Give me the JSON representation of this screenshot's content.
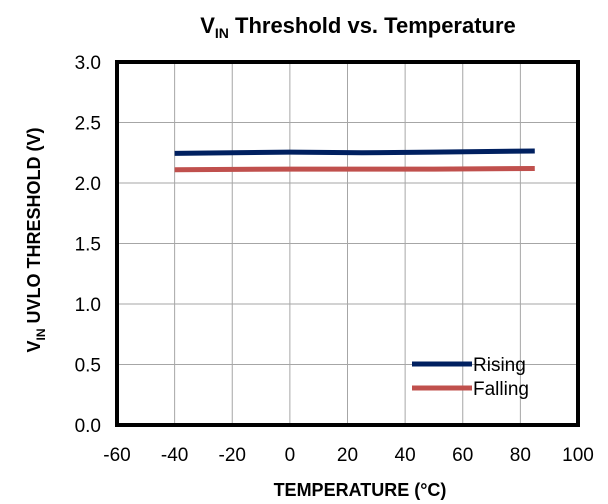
{
  "chart_data": {
    "type": "line",
    "title_main": "V",
    "title_sub": "IN",
    "title_rest": " Threshold vs. Temperature",
    "xlabel": "TEMPERATURE (°C)",
    "ylabel_main": "V",
    "ylabel_sub": "IN",
    "ylabel_rest": " UVLO THRESHOLD (V)",
    "xlim": [
      -60,
      100
    ],
    "ylim": [
      0,
      3.0
    ],
    "xticks": [
      -60,
      -40,
      -20,
      0,
      20,
      40,
      60,
      80,
      100
    ],
    "yticks": [
      0,
      0.5,
      1.0,
      1.5,
      2.0,
      2.5,
      3.0
    ],
    "xtick_labels": [
      "-60",
      "-40",
      "-20",
      "0",
      "20",
      "40",
      "60",
      "80",
      "100"
    ],
    "ytick_labels": [
      "0.0",
      "0.5",
      "1.0",
      "1.5",
      "2.0",
      "2.5",
      "3.0"
    ],
    "grid": true,
    "legend_position": "bottom-right",
    "series": [
      {
        "name": "Rising",
        "color": "#002060",
        "x": [
          -40,
          0,
          25,
          50,
          85
        ],
        "y": [
          2.245,
          2.255,
          2.25,
          2.255,
          2.265
        ]
      },
      {
        "name": "Falling",
        "color": "#c0504d",
        "x": [
          -40,
          0,
          25,
          50,
          85
        ],
        "y": [
          2.11,
          2.115,
          2.115,
          2.115,
          2.12
        ]
      }
    ]
  }
}
